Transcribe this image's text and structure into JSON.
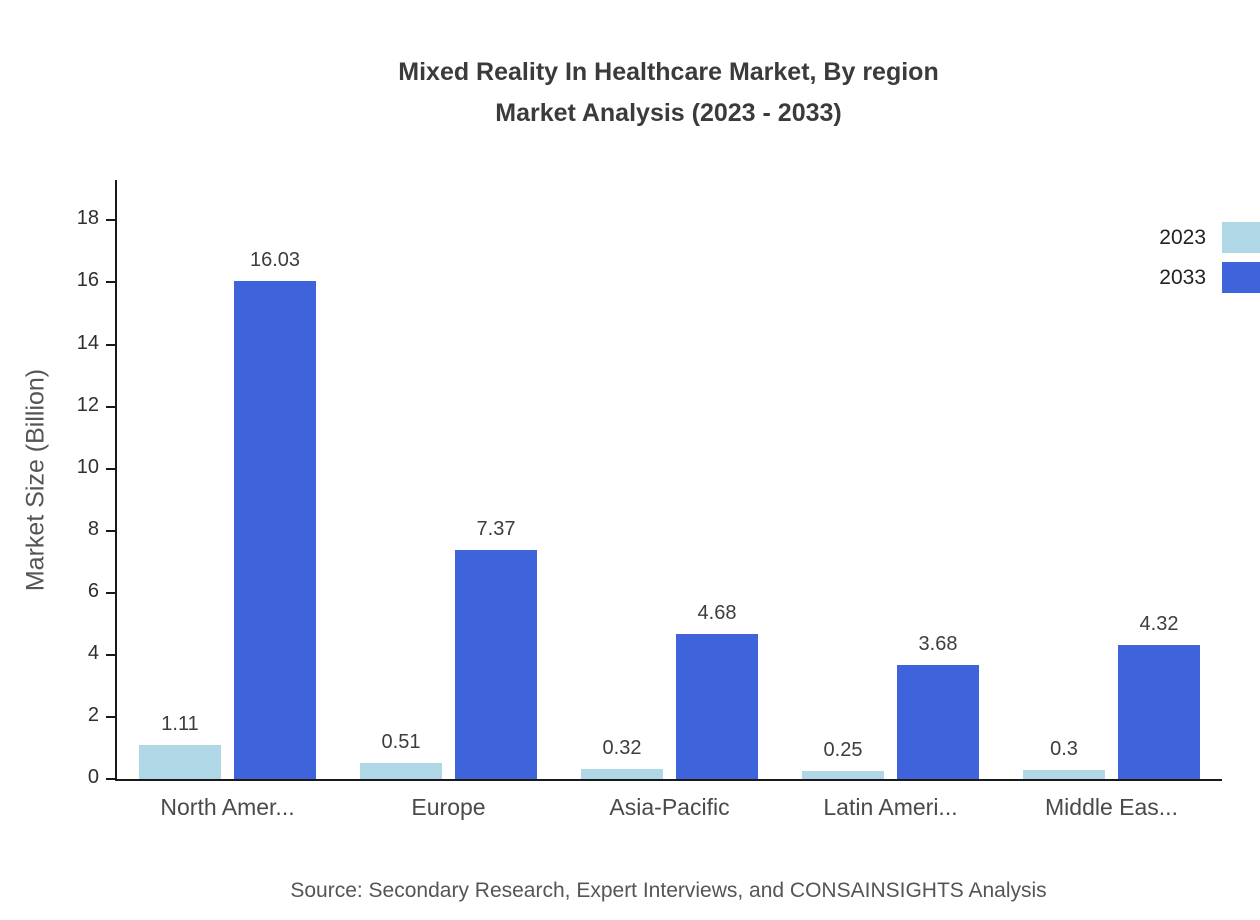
{
  "chart_data": {
    "type": "bar",
    "title_line1": "Mixed Reality In Healthcare Market, By region",
    "title_line2": "Market Analysis (2023 - 2033)",
    "ylabel": "Market Size (Billion)",
    "categories": [
      "North Amer...",
      "Europe",
      "Asia-Pacific",
      "Latin Ameri...",
      "Middle Eas..."
    ],
    "series": [
      {
        "name": "2023",
        "color": "#b0d7e6",
        "values": [
          1.11,
          0.51,
          0.32,
          0.25,
          0.3
        ]
      },
      {
        "name": "2033",
        "color": "#3e63da",
        "values": [
          16.03,
          7.37,
          4.68,
          3.68,
          4.32
        ]
      }
    ],
    "yticks": [
      0,
      2,
      4,
      6,
      8,
      10,
      12,
      14,
      16,
      18
    ],
    "ylim": [
      0,
      19.3
    ],
    "grid": false,
    "legend_position": "top-right",
    "source": "Source: Secondary Research, Expert Interviews, and CONSAINSIGHTS Analysis"
  }
}
